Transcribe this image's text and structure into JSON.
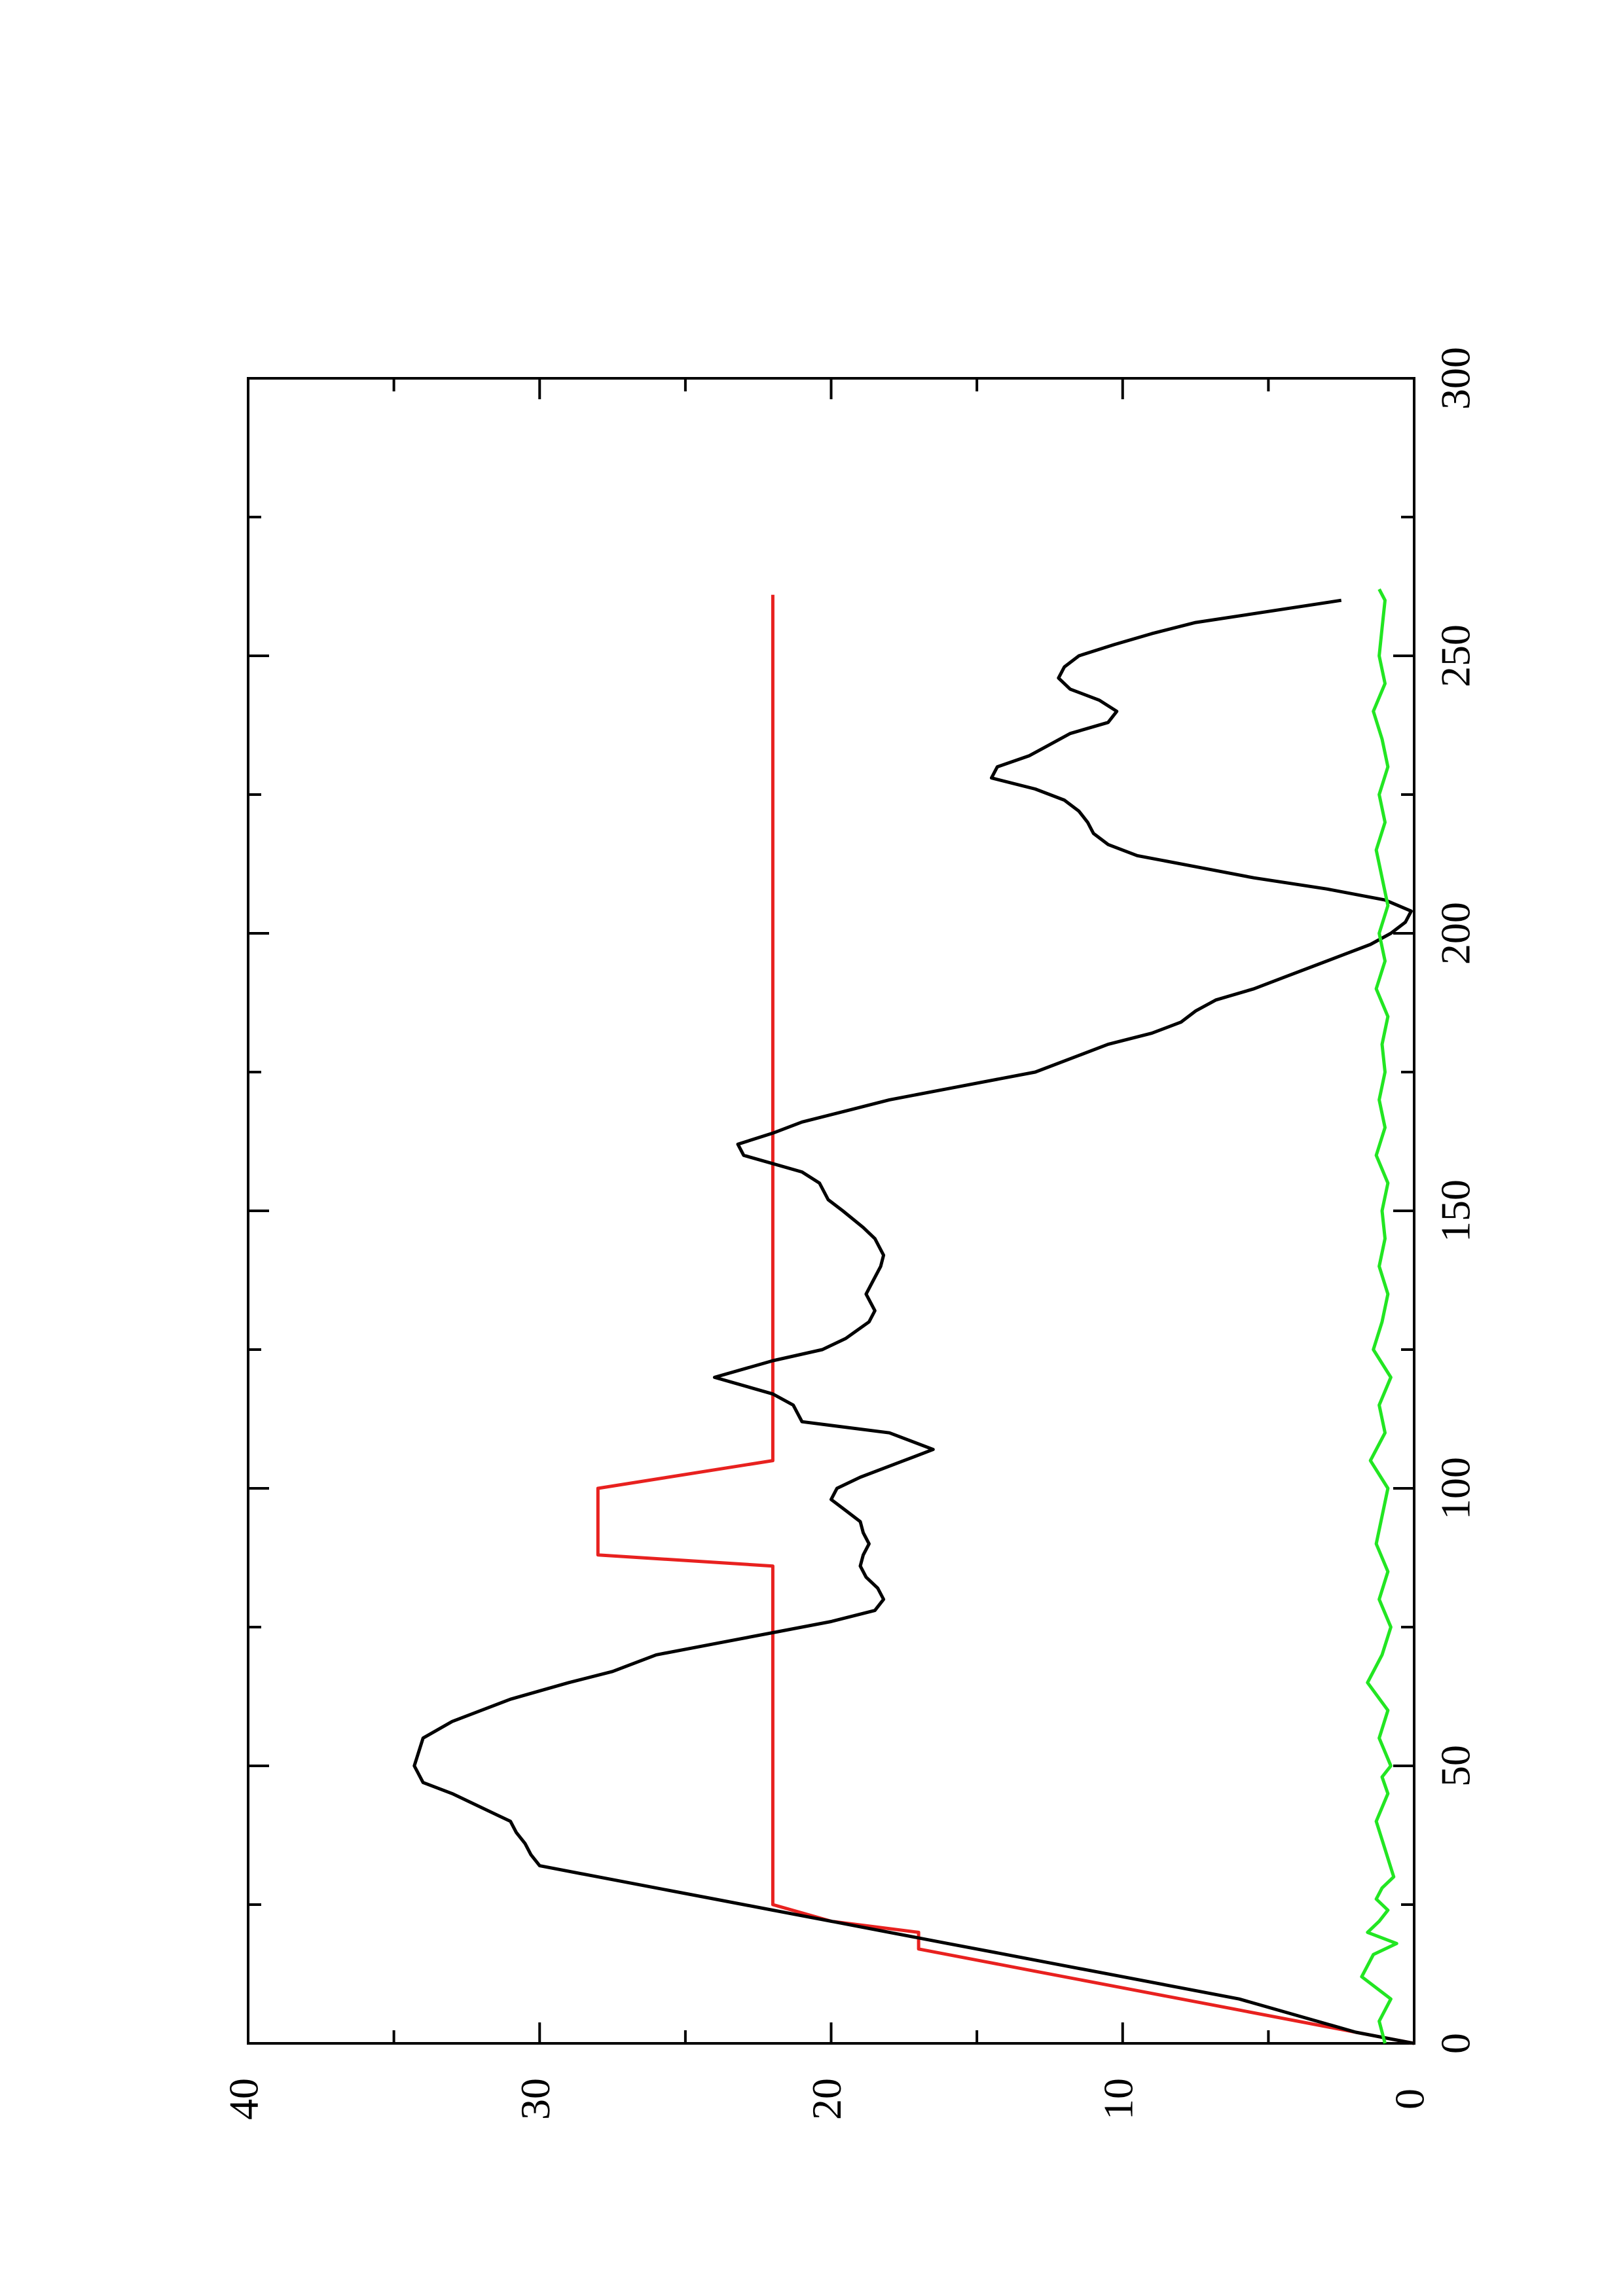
{
  "chart_data": {
    "type": "line",
    "title": "",
    "xlabel": "",
    "ylabel": "",
    "orientation": "rotated-90-ccw",
    "xlim": [
      0,
      300
    ],
    "ylim": [
      0,
      40
    ],
    "x_ticks": [
      "0",
      "50",
      "100",
      "150",
      "200",
      "250",
      "300"
    ],
    "y_ticks": [
      "0",
      "10",
      "20",
      "30",
      "40"
    ],
    "grid": false,
    "legend": "none",
    "series": [
      {
        "color": "#e8211f",
        "x": [
          0,
          6,
          10,
          13,
          15,
          17,
          20,
          22,
          25,
          27,
          30,
          32,
          35,
          38,
          40,
          42,
          45,
          50,
          55,
          60,
          70,
          72,
          75,
          80,
          86,
          88,
          95,
          98,
          100,
          105,
          108,
          110,
          112,
          115,
          118,
          120,
          125,
          130,
          132,
          135,
          140,
          145,
          150,
          153,
          158,
          160,
          162,
          164,
          168,
          172,
          175,
          180,
          182,
          186,
          190,
          194,
          198,
          200,
          204,
          208,
          210,
          214,
          218,
          220,
          222,
          225,
          228,
          232,
          236,
          238,
          240,
          244,
          248,
          252,
          254,
          256,
          258,
          261
        ],
        "y": [
          0,
          6,
          10,
          13,
          15,
          17,
          17,
          20,
          22,
          22,
          22,
          22,
          22,
          22,
          22,
          22,
          22,
          22,
          22,
          22,
          22,
          22,
          22,
          22,
          22,
          28,
          28,
          28,
          28,
          22,
          22,
          22,
          22,
          22,
          22,
          22,
          22,
          22,
          22,
          22,
          22,
          22,
          22,
          22,
          22,
          22,
          22,
          22,
          22,
          22,
          22,
          22,
          22,
          22,
          22,
          22,
          22,
          22,
          22,
          22,
          22,
          22,
          22,
          22,
          22,
          22,
          22,
          22,
          22,
          22,
          22,
          22,
          22,
          22,
          22,
          22,
          22,
          22
        ]
      },
      {
        "color": "#000000",
        "x": [
          0,
          2,
          5,
          8,
          10,
          12,
          14,
          16,
          18,
          20,
          22,
          24,
          26,
          28,
          30,
          32,
          34,
          36,
          38,
          40,
          45,
          47,
          50,
          55,
          58,
          60,
          62,
          65,
          67,
          70,
          72,
          74,
          76,
          78,
          80,
          82,
          84,
          86,
          88,
          90,
          92,
          94,
          96,
          98,
          100,
          102,
          105,
          107,
          110,
          112,
          115,
          117,
          120,
          123,
          125,
          127,
          130,
          132,
          135,
          137,
          140,
          142,
          145,
          147,
          150,
          152,
          155,
          157,
          160,
          162,
          164,
          166,
          168,
          170,
          172,
          175,
          178,
          180,
          182,
          184,
          186,
          188,
          190,
          192,
          194,
          196,
          198,
          200,
          202,
          204,
          206,
          208,
          210,
          212,
          214,
          216,
          218,
          220,
          222,
          224,
          226,
          228,
          230,
          232,
          234,
          236,
          238,
          240,
          242,
          244,
          246,
          248,
          250,
          252,
          254,
          256,
          258,
          260
        ],
        "y": [
          0,
          2,
          4,
          6,
          8,
          10,
          12,
          14,
          16,
          18,
          20,
          22,
          24,
          26,
          28,
          30,
          30.3,
          30.5,
          30.8,
          31,
          33,
          34,
          34.3,
          34,
          33,
          32,
          31,
          29,
          27.5,
          26,
          24,
          22,
          20,
          18.5,
          18.2,
          18.4,
          18.8,
          19,
          18.9,
          18.7,
          18.9,
          19,
          19.5,
          20,
          19.8,
          19,
          17.5,
          16.5,
          18,
          21,
          21.3,
          22,
          24,
          22,
          20.3,
          19.5,
          18.7,
          18.5,
          18.8,
          18.6,
          18.3,
          18.2,
          18.5,
          18.9,
          19.6,
          20.1,
          20.4,
          21,
          23,
          23.2,
          22,
          21,
          19.5,
          18,
          16,
          13,
          11.5,
          10.5,
          9,
          8,
          7.5,
          6.8,
          5.5,
          4.5,
          3.5,
          2.5,
          1.5,
          0.8,
          0.3,
          0.1,
          1,
          3,
          5.5,
          7.5,
          9.5,
          10.5,
          11,
          11.2,
          11.5,
          12,
          13,
          14.5,
          14.3,
          13.2,
          12.5,
          11.8,
          10.5,
          10.2,
          10.8,
          11.8,
          12.2,
          12,
          11.5,
          10.3,
          9,
          7.5,
          5,
          2.5
        ]
      },
      {
        "color": "#22e622",
        "x": [
          0,
          4,
          8,
          12,
          16,
          18,
          20,
          22,
          24,
          26,
          28,
          30,
          35,
          40,
          45,
          48,
          50,
          55,
          60,
          65,
          70,
          75,
          80,
          85,
          90,
          95,
          100,
          105,
          110,
          115,
          120,
          125,
          130,
          135,
          140,
          145,
          150,
          155,
          160,
          165,
          170,
          175,
          180,
          185,
          190,
          195,
          200,
          205,
          210,
          215,
          220,
          225,
          230,
          235,
          240,
          245,
          250,
          255,
          260,
          262
        ],
        "y": [
          1,
          1.2,
          0.8,
          1.8,
          1.4,
          0.6,
          1.6,
          1.2,
          0.9,
          1.3,
          1.1,
          0.7,
          1.0,
          1.3,
          0.9,
          1.1,
          0.8,
          1.2,
          0.9,
          1.6,
          1.1,
          0.8,
          1.2,
          0.9,
          1.3,
          1.1,
          0.9,
          1.5,
          1.0,
          1.2,
          0.8,
          1.4,
          1.1,
          0.9,
          1.2,
          1.0,
          1.1,
          0.9,
          1.3,
          1.0,
          1.2,
          1.0,
          1.1,
          0.9,
          1.3,
          1.0,
          1.2,
          0.9,
          1.1,
          1.3,
          1.0,
          1.2,
          0.9,
          1.1,
          1.4,
          1.0,
          1.2,
          1.1,
          1.0,
          1.2
        ]
      }
    ]
  }
}
